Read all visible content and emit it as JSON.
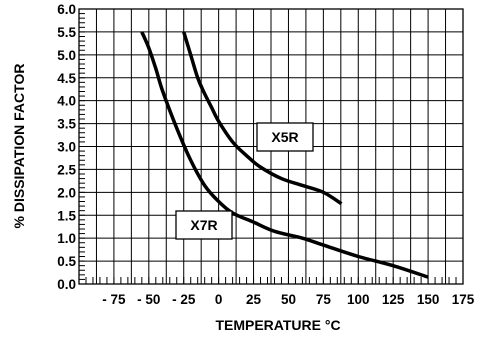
{
  "chart_data": {
    "type": "line",
    "xlabel": "TEMPERATURE °C",
    "ylabel": "% DISSIPATION FACTOR",
    "xlim": [
      -100,
      175
    ],
    "ylim": [
      0,
      6
    ],
    "x_ticks": [
      "- 75",
      "- 50",
      "- 25",
      "0",
      "25",
      "50",
      "75",
      "100",
      "125",
      "150",
      "175"
    ],
    "x_tick_values": [
      -75,
      -50,
      -25,
      0,
      25,
      50,
      75,
      100,
      125,
      150,
      175
    ],
    "y_ticks": [
      "0.0",
      "0.5",
      "1.0",
      "1.5",
      "2.0",
      "2.5",
      "3.0",
      "3.5",
      "4.0",
      "4.5",
      "5.0",
      "5.5",
      "6.0"
    ],
    "y_tick_values": [
      0,
      0.5,
      1.0,
      1.5,
      2.0,
      2.5,
      3.0,
      3.5,
      4.0,
      4.5,
      5.0,
      5.5,
      6.0
    ],
    "grid": true,
    "series": [
      {
        "name": "X5R",
        "x": [
          -25,
          -20,
          -15,
          -10,
          -5,
          0,
          10,
          20,
          30,
          45,
          60,
          75,
          88
        ],
        "y": [
          5.5,
          5.0,
          4.5,
          4.15,
          3.85,
          3.55,
          3.1,
          2.8,
          2.55,
          2.3,
          2.15,
          2.0,
          1.75
        ]
      },
      {
        "name": "X7R",
        "x": [
          -55,
          -50,
          -45,
          -40,
          -30,
          -20,
          -10,
          0,
          10,
          25,
          40,
          60,
          75,
          100,
          125,
          150
        ],
        "y": [
          5.5,
          5.15,
          4.7,
          4.2,
          3.4,
          2.7,
          2.15,
          1.8,
          1.55,
          1.35,
          1.15,
          1.0,
          0.85,
          0.6,
          0.4,
          0.15
        ]
      }
    ],
    "annotations": [
      {
        "text": "X5R",
        "target": "X5R"
      },
      {
        "text": "X7R",
        "target": "X7R"
      }
    ],
    "colors": {
      "line": "#000000",
      "grid": "#000000",
      "background": "#ffffff"
    }
  }
}
